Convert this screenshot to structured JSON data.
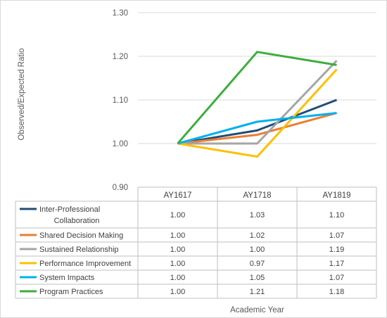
{
  "chart_data": {
    "type": "line",
    "categories": [
      "AY1617",
      "AY1718",
      "AY1819"
    ],
    "ylabel": "Observed/Expected Ratio",
    "xlabel": "Academic Year",
    "ylim": [
      0.9,
      1.3
    ],
    "yticks": [
      "1.30",
      "1.20",
      "1.10",
      "1.00",
      "0.90"
    ],
    "ytick_values": [
      1.3,
      1.2,
      1.1,
      1.0,
      0.9
    ],
    "grid": true,
    "legend": "data-table",
    "series": [
      {
        "name": "Inter-Professional Collaboration",
        "name_lines": [
          "Inter-Professional",
          "Collaboration"
        ],
        "color": "#1f4e79",
        "values": [
          1.0,
          1.03,
          1.1
        ],
        "labels": [
          "1.00",
          "1.03",
          "1.10"
        ]
      },
      {
        "name": "Shared Decision Making",
        "name_lines": [
          "Shared Decision Making"
        ],
        "color": "#ed7d31",
        "values": [
          1.0,
          1.02,
          1.07
        ],
        "labels": [
          "1.00",
          "1.02",
          "1.07"
        ]
      },
      {
        "name": "Sustained Relationship",
        "name_lines": [
          "Sustained Relationship"
        ],
        "color": "#a5a5a5",
        "values": [
          1.0,
          1.0,
          1.19
        ],
        "labels": [
          "1.00",
          "1.00",
          "1.19"
        ]
      },
      {
        "name": "Performance Improvement",
        "name_lines": [
          "Performance Improvement"
        ],
        "color": "#ffc000",
        "values": [
          1.0,
          0.97,
          1.17
        ],
        "labels": [
          "1.00",
          "0.97",
          "1.17"
        ]
      },
      {
        "name": "System Impacts",
        "name_lines": [
          "System Impacts"
        ],
        "color": "#00b0f0",
        "values": [
          1.0,
          1.05,
          1.07
        ],
        "labels": [
          "1.00",
          "1.05",
          "1.07"
        ]
      },
      {
        "name": "Program Practices",
        "name_lines": [
          "Program Practices"
        ],
        "color": "#3cae3c",
        "values": [
          1.0,
          1.21,
          1.18
        ],
        "labels": [
          "1.00",
          "1.21",
          "1.18"
        ]
      }
    ]
  }
}
